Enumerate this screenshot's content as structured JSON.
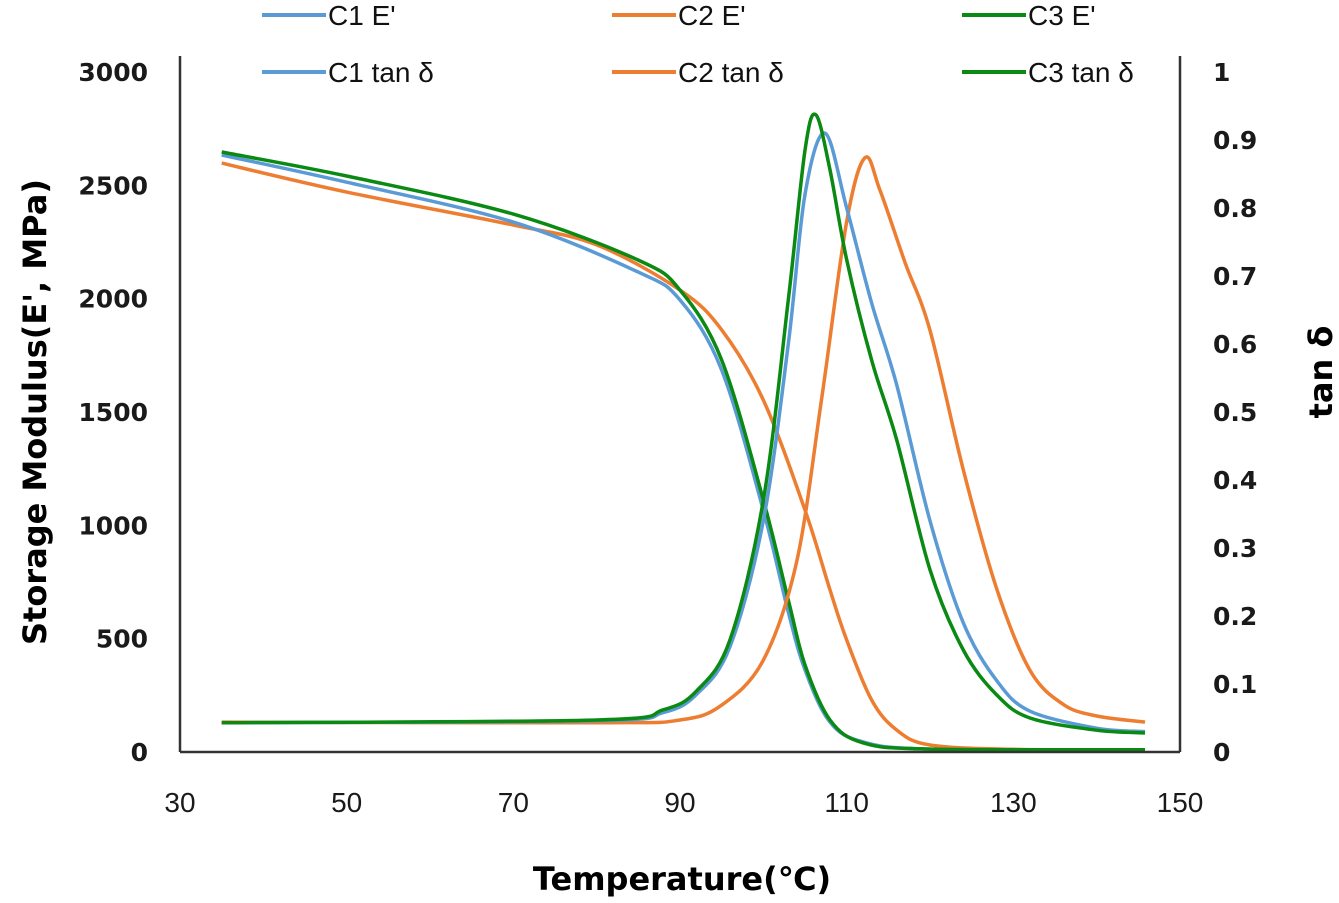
{
  "chart_data": {
    "type": "line",
    "title": "",
    "xlabel": "Temperature(℃)",
    "ylabel": "Storage  Modulus(E', MPa)",
    "y2label": "tan δ",
    "xlim": [
      30,
      150
    ],
    "ylim": [
      0,
      3000
    ],
    "y2lim": [
      0,
      1
    ],
    "xticks": [
      "30",
      "50",
      "70",
      "90",
      "110",
      "130",
      "150"
    ],
    "yticks": [
      "0",
      "500",
      "1000",
      "1500",
      "2000",
      "2500",
      "3000"
    ],
    "y2ticks": [
      "0",
      "0.1",
      "0.2",
      "0.3",
      "0.4",
      "0.5",
      "0.6",
      "0.7",
      "0.8",
      "0.9",
      "1"
    ],
    "grid": false,
    "legend_position": "top",
    "series": [
      {
        "name": "C1 E'",
        "axis": "left",
        "color": "#5b9bd5",
        "x": [
          35,
          50,
          70,
          85,
          90,
          95,
          100,
          103,
          105,
          108,
          112,
          120,
          145.8
        ],
        "y": [
          2634,
          2514,
          2338,
          2117,
          1994,
          1685,
          1067,
          617,
          362,
          132,
          44,
          13,
          8
        ]
      },
      {
        "name": "C2 E'",
        "axis": "left",
        "color": "#ed7d31",
        "x": [
          35,
          50,
          70,
          80,
          90,
          95,
          100,
          105,
          108,
          110,
          113,
          116,
          120,
          130,
          145.8
        ],
        "y": [
          2598,
          2470,
          2325,
          2237,
          2038,
          1862,
          1553,
          1067,
          715,
          494,
          229,
          97,
          31,
          12,
          10
        ]
      },
      {
        "name": "C3 E'",
        "axis": "left",
        "color": "#0a8a12",
        "x": [
          35,
          50,
          70,
          85,
          90,
          95,
          100,
          103,
          105,
          108,
          112,
          120,
          145.8
        ],
        "y": [
          2647,
          2541,
          2373,
          2170,
          2038,
          1729,
          1112,
          670,
          384,
          141,
          40,
          13,
          10
        ]
      },
      {
        "name": "C1 tan δ",
        "axis": "right",
        "color": "#5b9bd5",
        "x": [
          35,
          80,
          88,
          92,
          96,
          100,
          103,
          105,
          107.4,
          110,
          113,
          116,
          120,
          124,
          128,
          132,
          140,
          145.8
        ],
        "y": [
          0.043,
          0.046,
          0.058,
          0.085,
          0.155,
          0.34,
          0.6,
          0.82,
          0.91,
          0.8,
          0.66,
          0.54,
          0.34,
          0.19,
          0.105,
          0.06,
          0.035,
          0.03
        ]
      },
      {
        "name": "C2 tan δ",
        "axis": "right",
        "color": "#ed7d31",
        "x": [
          35,
          80,
          90,
          95,
          100,
          104,
          107,
          110,
          112.2,
          114,
          117,
          120,
          124,
          128,
          132,
          136,
          140,
          145.8
        ],
        "y": [
          0.044,
          0.043,
          0.047,
          0.069,
          0.135,
          0.28,
          0.52,
          0.78,
          0.874,
          0.826,
          0.72,
          0.62,
          0.415,
          0.24,
          0.12,
          0.07,
          0.053,
          0.044
        ]
      },
      {
        "name": "C3 tan δ",
        "axis": "right",
        "color": "#0a8a12",
        "x": [
          35,
          80,
          88,
          92,
          96,
          100,
          103,
          105,
          106.3,
          108,
          110,
          113,
          116,
          120,
          124,
          128,
          132,
          140,
          145.8
        ],
        "y": [
          0.043,
          0.047,
          0.062,
          0.09,
          0.165,
          0.37,
          0.665,
          0.885,
          0.937,
          0.856,
          0.724,
          0.576,
          0.459,
          0.268,
          0.15,
          0.084,
          0.05,
          0.032,
          0.028
        ]
      }
    ]
  }
}
